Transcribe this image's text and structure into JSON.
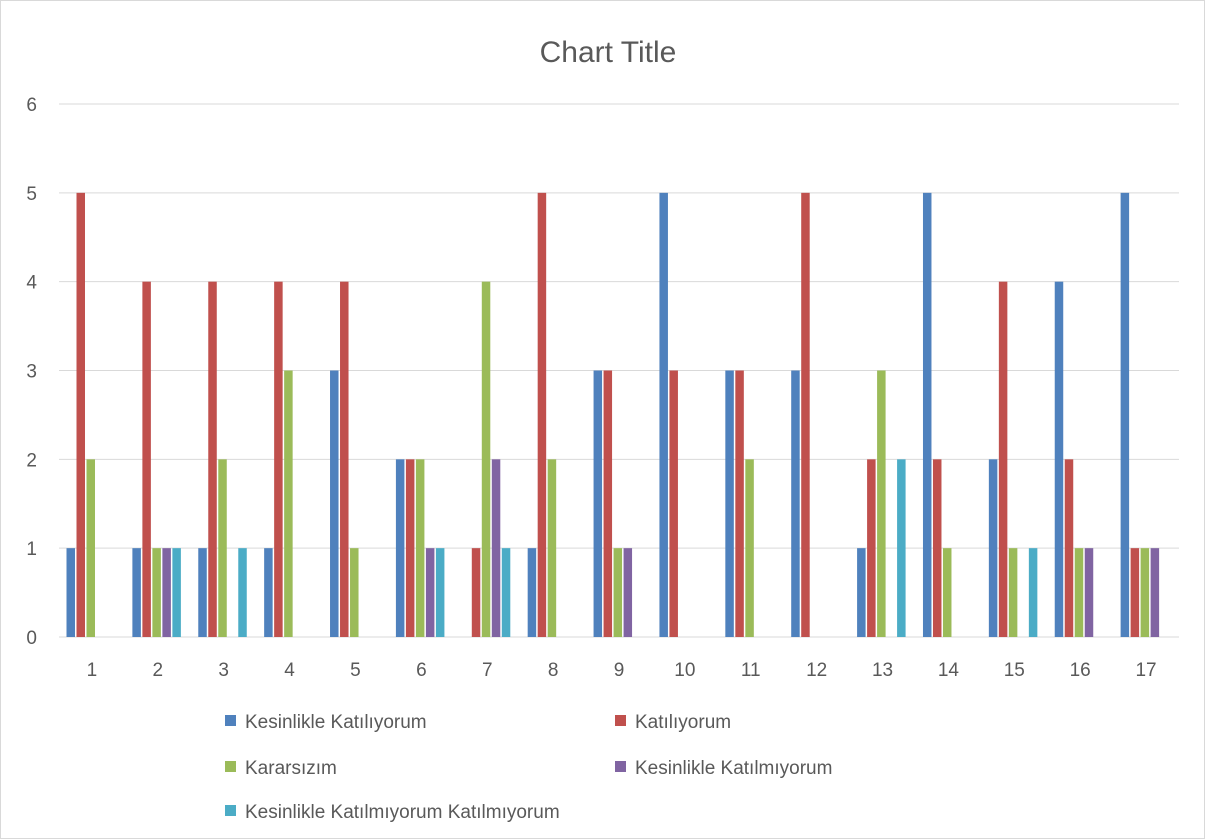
{
  "chart_data": {
    "type": "bar",
    "title": "Chart Title",
    "xlabel": "",
    "ylabel": "",
    "ylim": [
      0,
      6
    ],
    "y_ticks": [
      "0",
      "1",
      "2",
      "3",
      "4",
      "5",
      "6"
    ],
    "categories": [
      "1",
      "2",
      "3",
      "4",
      "5",
      "6",
      "7",
      "8",
      "9",
      "10",
      "11",
      "12",
      "13",
      "14",
      "15",
      "16",
      "17"
    ],
    "grid": "horizontal",
    "legend_position": "bottom",
    "series": [
      {
        "name": "Kesinlikle Katılıyorum",
        "color": "#4f81bd",
        "values": [
          1,
          1,
          1,
          1,
          3,
          2,
          0,
          1,
          3,
          5,
          3,
          3,
          1,
          5,
          2,
          4,
          5
        ]
      },
      {
        "name": "Katılıyorum",
        "color": "#c0504d",
        "values": [
          5,
          4,
          4,
          4,
          4,
          2,
          1,
          5,
          3,
          3,
          3,
          5,
          2,
          2,
          4,
          2,
          1
        ]
      },
      {
        "name": "Kararsızım",
        "color": "#9bbb59",
        "values": [
          2,
          1,
          2,
          3,
          1,
          2,
          4,
          2,
          1,
          0,
          2,
          0,
          3,
          1,
          1,
          1,
          1
        ]
      },
      {
        "name": "Kesinlikle Katılmıyorum",
        "color": "#8064a2",
        "values": [
          0,
          1,
          0,
          0,
          0,
          1,
          2,
          0,
          1,
          0,
          0,
          0,
          0,
          0,
          0,
          1,
          1
        ]
      },
      {
        "name": "Kesinlikle Katılmıyorum Katılmıyorum",
        "color": "#4bacc6",
        "values": [
          0,
          1,
          1,
          0,
          0,
          1,
          1,
          0,
          0,
          0,
          0,
          0,
          2,
          0,
          1,
          0,
          0
        ]
      }
    ]
  }
}
